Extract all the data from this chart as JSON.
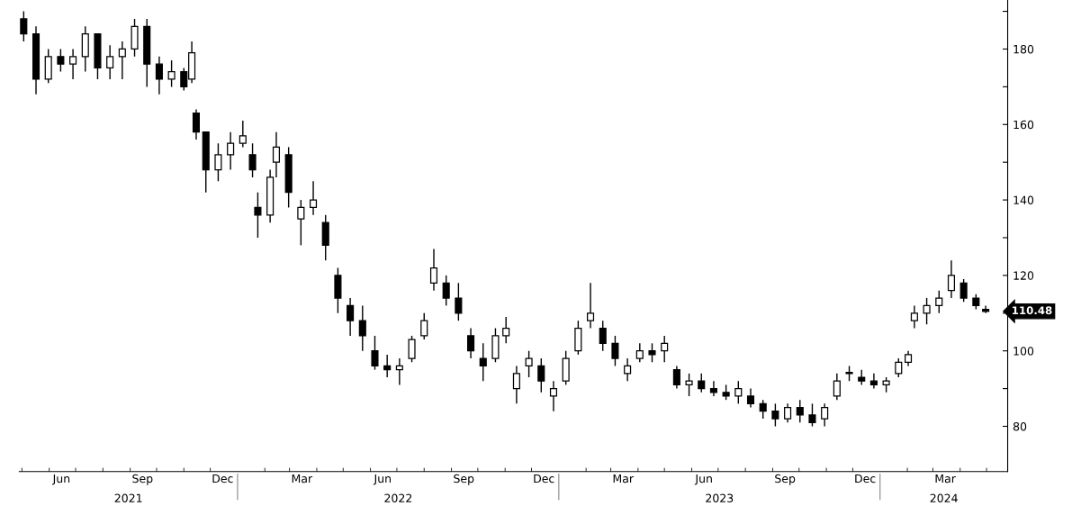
{
  "chart_data": {
    "type": "candlestick",
    "color": "#000000",
    "x": [
      "2021-05-03",
      "2021-05-17",
      "2021-05-31",
      "2021-06-14",
      "2021-06-28",
      "2021-07-12",
      "2021-07-26",
      "2021-08-09",
      "2021-08-23",
      "2021-09-06",
      "2021-09-20",
      "2021-10-04",
      "2021-10-18",
      "2021-11-01",
      "2021-11-10",
      "2021-11-15",
      "2021-11-26",
      "2021-12-10",
      "2021-12-24",
      "2022-01-07",
      "2022-01-18",
      "2022-01-24",
      "2022-02-07",
      "2022-02-14",
      "2022-02-28",
      "2022-03-14",
      "2022-03-28",
      "2022-04-11",
      "2022-04-25",
      "2022-05-09",
      "2022-05-23",
      "2022-06-06",
      "2022-06-20",
      "2022-07-04",
      "2022-07-18",
      "2022-08-01",
      "2022-08-12",
      "2022-08-26",
      "2022-09-09",
      "2022-09-23",
      "2022-10-07",
      "2022-10-21",
      "2022-11-02",
      "2022-11-14",
      "2022-11-28",
      "2022-12-12",
      "2022-12-26",
      "2023-01-09",
      "2023-01-23",
      "2023-02-06",
      "2023-02-20",
      "2023-03-06",
      "2023-03-20",
      "2023-04-03",
      "2023-04-17",
      "2023-05-01",
      "2023-05-15",
      "2023-05-29",
      "2023-06-12",
      "2023-06-26",
      "2023-07-10",
      "2023-07-24",
      "2023-08-07",
      "2023-08-21",
      "2023-09-04",
      "2023-09-18",
      "2023-10-02",
      "2023-10-16",
      "2023-10-30",
      "2023-11-13",
      "2023-11-27",
      "2023-12-11",
      "2023-12-25",
      "2024-01-08",
      "2024-01-22",
      "2024-02-02",
      "2024-02-09",
      "2024-02-23",
      "2024-03-08",
      "2024-03-22",
      "2024-04-05",
      "2024-04-19",
      "2024-04-30"
    ],
    "ohlc": [
      [
        188,
        190,
        182,
        184
      ],
      [
        184,
        186,
        168,
        172
      ],
      [
        172,
        180,
        171,
        178
      ],
      [
        178,
        180,
        174,
        176
      ],
      [
        176,
        180,
        172,
        178
      ],
      [
        178,
        186,
        174,
        184
      ],
      [
        184,
        184,
        172,
        175
      ],
      [
        175,
        181,
        172,
        178
      ],
      [
        178,
        182,
        172,
        180
      ],
      [
        180,
        188,
        178,
        186
      ],
      [
        186,
        188,
        170,
        176
      ],
      [
        176,
        178,
        168,
        172
      ],
      [
        172,
        177,
        170,
        174
      ],
      [
        174,
        175,
        169,
        170
      ],
      [
        172,
        182,
        171,
        179
      ],
      [
        163,
        164,
        156,
        158
      ],
      [
        158,
        158,
        142,
        148
      ],
      [
        148,
        155,
        145,
        152
      ],
      [
        152,
        158,
        148,
        155
      ],
      [
        155,
        161,
        154,
        157
      ],
      [
        152,
        155,
        146,
        148
      ],
      [
        138,
        142,
        130,
        136
      ],
      [
        136,
        148,
        134,
        146
      ],
      [
        150,
        158,
        146,
        154
      ],
      [
        152,
        154,
        138,
        142
      ],
      [
        135,
        140,
        128,
        138
      ],
      [
        138,
        145,
        136,
        140
      ],
      [
        134,
        136,
        124,
        128
      ],
      [
        120,
        122,
        110,
        114
      ],
      [
        112,
        114,
        104,
        108
      ],
      [
        108,
        112,
        100,
        104
      ],
      [
        100,
        104,
        95,
        96
      ],
      [
        96,
        99,
        93,
        95
      ],
      [
        95,
        98,
        91,
        96
      ],
      [
        98,
        104,
        97,
        103
      ],
      [
        104,
        110,
        103,
        108
      ],
      [
        118,
        127,
        116,
        122
      ],
      [
        118,
        120,
        112,
        114
      ],
      [
        114,
        118,
        108,
        110
      ],
      [
        104,
        106,
        98,
        100
      ],
      [
        98,
        102,
        92,
        96
      ],
      [
        98,
        106,
        97,
        104
      ],
      [
        104,
        109,
        102,
        106
      ],
      [
        90,
        96,
        86,
        94
      ],
      [
        96,
        100,
        93,
        98
      ],
      [
        96,
        98,
        89,
        92
      ],
      [
        88,
        92,
        84,
        90
      ],
      [
        92,
        100,
        91,
        98
      ],
      [
        100,
        108,
        99,
        106
      ],
      [
        108,
        118,
        106,
        110
      ],
      [
        106,
        108,
        100,
        102
      ],
      [
        102,
        104,
        96,
        98
      ],
      [
        94,
        98,
        92,
        96
      ],
      [
        98,
        102,
        97,
        100
      ],
      [
        100,
        102,
        97,
        99
      ],
      [
        100,
        104,
        97,
        102
      ],
      [
        95,
        96,
        90,
        91
      ],
      [
        91,
        94,
        88,
        92
      ],
      [
        92,
        94,
        89,
        90
      ],
      [
        90,
        92,
        88,
        89
      ],
      [
        89,
        91,
        87,
        88
      ],
      [
        88,
        92,
        86,
        90
      ],
      [
        88,
        90,
        85,
        86
      ],
      [
        86,
        87,
        82,
        84
      ],
      [
        84,
        86,
        80,
        82
      ],
      [
        82,
        86,
        81,
        85
      ],
      [
        85,
        87,
        81,
        83
      ],
      [
        83,
        86,
        80,
        81
      ],
      [
        82,
        86,
        80,
        85
      ],
      [
        88,
        94,
        87,
        92
      ],
      [
        94,
        96,
        92,
        94
      ],
      [
        93,
        95,
        91,
        92
      ],
      [
        92,
        94,
        90,
        91
      ],
      [
        91,
        93,
        89,
        92
      ],
      [
        94,
        98,
        93,
        97
      ],
      [
        97,
        100,
        96,
        99
      ],
      [
        108,
        112,
        106,
        110
      ],
      [
        110,
        114,
        107,
        112
      ],
      [
        112,
        116,
        110,
        114
      ],
      [
        116,
        124,
        114,
        120
      ],
      [
        118,
        119,
        113,
        114
      ],
      [
        114,
        115,
        111,
        112
      ],
      [
        111,
        112,
        110,
        110.48
      ]
    ],
    "xlim": [
      "2021-04-28",
      "2024-05-25"
    ],
    "xticks": [
      {
        "value": "2021-05-01",
        "label": null
      },
      {
        "value": "2021-06-01",
        "label": null
      },
      {
        "value": "2021-06-15",
        "label": "Jun"
      },
      {
        "value": "2021-07-01",
        "label": null
      },
      {
        "value": "2021-08-01",
        "label": null
      },
      {
        "value": "2021-09-01",
        "label": null
      },
      {
        "value": "2021-09-15",
        "label": "Sep"
      },
      {
        "value": "2021-10-01",
        "label": null
      },
      {
        "value": "2021-11-01",
        "label": null
      },
      {
        "value": "2021-12-01",
        "label": null
      },
      {
        "value": "2021-12-15",
        "label": "Dec"
      },
      {
        "value": "2022-02-01",
        "label": null
      },
      {
        "value": "2022-03-01",
        "label": null
      },
      {
        "value": "2022-03-15",
        "label": "Mar"
      },
      {
        "value": "2022-04-01",
        "label": null
      },
      {
        "value": "2022-05-01",
        "label": null
      },
      {
        "value": "2022-06-01",
        "label": null
      },
      {
        "value": "2022-06-15",
        "label": "Jun"
      },
      {
        "value": "2022-07-01",
        "label": null
      },
      {
        "value": "2022-08-01",
        "label": null
      },
      {
        "value": "2022-09-01",
        "label": null
      },
      {
        "value": "2022-09-15",
        "label": "Sep"
      },
      {
        "value": "2022-10-01",
        "label": null
      },
      {
        "value": "2022-11-01",
        "label": null
      },
      {
        "value": "2022-12-01",
        "label": null
      },
      {
        "value": "2022-12-15",
        "label": "Dec"
      },
      {
        "value": "2023-02-01",
        "label": null
      },
      {
        "value": "2023-03-01",
        "label": null
      },
      {
        "value": "2023-03-15",
        "label": "Mar"
      },
      {
        "value": "2023-04-01",
        "label": null
      },
      {
        "value": "2023-05-01",
        "label": null
      },
      {
        "value": "2023-06-01",
        "label": null
      },
      {
        "value": "2023-06-15",
        "label": "Jun"
      },
      {
        "value": "2023-07-01",
        "label": null
      },
      {
        "value": "2023-08-01",
        "label": null
      },
      {
        "value": "2023-09-01",
        "label": null
      },
      {
        "value": "2023-09-15",
        "label": "Sep"
      },
      {
        "value": "2023-10-01",
        "label": null
      },
      {
        "value": "2023-11-01",
        "label": null
      },
      {
        "value": "2023-12-01",
        "label": null
      },
      {
        "value": "2023-12-15",
        "label": "Dec"
      },
      {
        "value": "2024-02-01",
        "label": null
      },
      {
        "value": "2024-03-01",
        "label": null
      },
      {
        "value": "2024-03-15",
        "label": "Mar"
      },
      {
        "value": "2024-04-01",
        "label": null
      },
      {
        "value": "2024-05-01",
        "label": null
      }
    ],
    "ylim": [
      68,
      193
    ],
    "yticks": [
      80,
      {
        "value": 90,
        "label": null
      },
      100,
      {
        "value": 110,
        "label": null
      },
      120,
      {
        "value": 130,
        "label": null
      },
      140,
      {
        "value": 150,
        "label": null
      },
      160,
      {
        "value": 170,
        "label": null
      },
      180,
      {
        "value": 190,
        "label": null
      }
    ],
    "grid": false,
    "annotations": [
      "2021",
      "2022",
      "2023",
      "2024",
      "110.48"
    ]
  }
}
